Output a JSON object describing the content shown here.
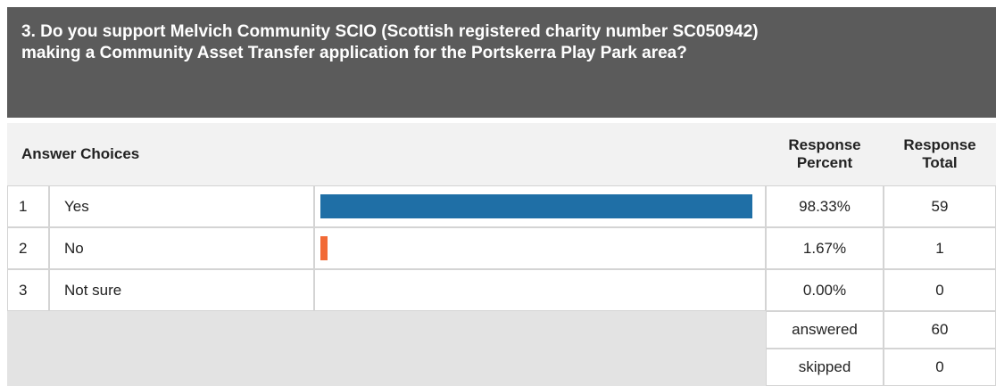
{
  "question": "3. Do you support Melvich Community SCIO (Scottish registered charity number SC050942) making a Community Asset Transfer application for the Portskerra Play Park area?",
  "headers": {
    "answer_choices": "Answer Choices",
    "response_percent": "Response Percent",
    "response_total": "Response Total"
  },
  "rows": [
    {
      "number": 1,
      "answer": "Yes",
      "percent": 98.33,
      "percent_label": "98.33%",
      "total": 59,
      "color": "#1f6fa6"
    },
    {
      "number": 2,
      "answer": "No",
      "percent": 1.67,
      "percent_label": "1.67%",
      "total": 1,
      "color": "#f26a36"
    },
    {
      "number": 3,
      "answer": "Not sure",
      "percent": 0,
      "percent_label": "0.00%",
      "total": 0,
      "color": "#1f6fa6"
    }
  ],
  "summary": [
    {
      "label": "answered",
      "value": 60
    },
    {
      "label": "skipped",
      "value": 0
    }
  ]
}
